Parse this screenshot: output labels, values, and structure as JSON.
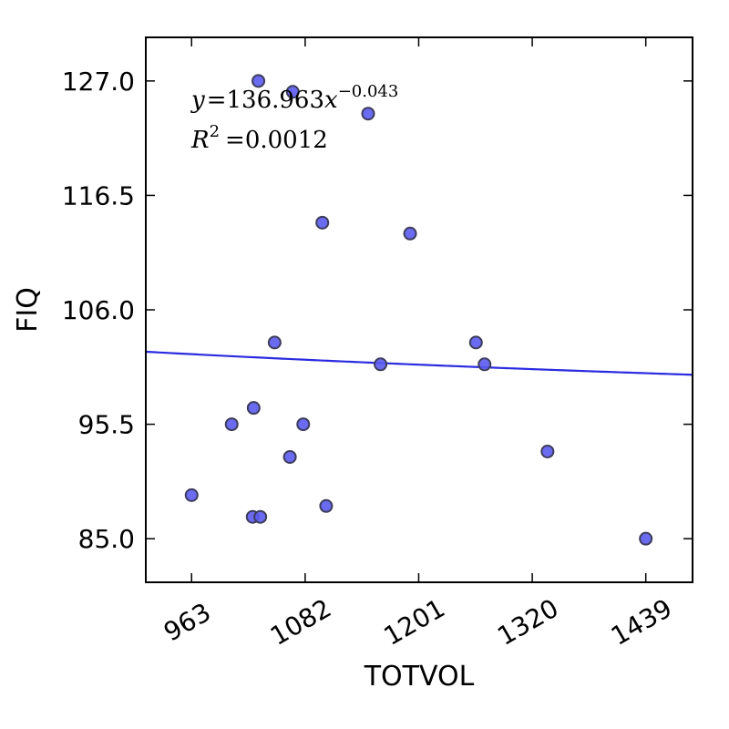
{
  "chart_data": {
    "type": "scatter",
    "xlabel": "TOTVOL",
    "ylabel": "FIQ",
    "xlim": [
      915,
      1488
    ],
    "ylim": [
      81,
      131
    ],
    "xticks": [
      963,
      1082,
      1201,
      1320,
      1439
    ],
    "xtick_labels": [
      "963",
      "1082",
      "1201",
      "1320",
      "1439"
    ],
    "yticks": [
      85.0,
      95.5,
      106.0,
      116.5,
      127.0
    ],
    "ytick_labels": [
      "85.0",
      "95.5",
      "106.0",
      "116.5",
      "127.0"
    ],
    "grid": false,
    "points": [
      {
        "x": 1033,
        "y": 127
      },
      {
        "x": 1069,
        "y": 126
      },
      {
        "x": 1148,
        "y": 124
      },
      {
        "x": 1100,
        "y": 114
      },
      {
        "x": 1192,
        "y": 113
      },
      {
        "x": 1050,
        "y": 103
      },
      {
        "x": 1261,
        "y": 103
      },
      {
        "x": 1161,
        "y": 101
      },
      {
        "x": 1270,
        "y": 101
      },
      {
        "x": 1028,
        "y": 97
      },
      {
        "x": 1005,
        "y": 95.5
      },
      {
        "x": 1080,
        "y": 95.5
      },
      {
        "x": 1066,
        "y": 92.5
      },
      {
        "x": 1336,
        "y": 93
      },
      {
        "x": 963,
        "y": 89
      },
      {
        "x": 1104,
        "y": 88
      },
      {
        "x": 1027,
        "y": 87
      },
      {
        "x": 1035,
        "y": 87
      },
      {
        "x": 1439,
        "y": 85
      }
    ],
    "fit": {
      "type": "power",
      "a": 136.963,
      "b": -0.043
    },
    "equation_text": {
      "y_label": "y",
      "equals": "=",
      "coef": "136.963",
      "var": "x",
      "exponent": "−0.043"
    },
    "r2_text": {
      "label": "R",
      "sup": "2",
      "equals": "=",
      "value": "0.0012"
    },
    "colors": {
      "point_fill": "#5b5bef",
      "point_stroke": "#3c3c5c",
      "fit_line": "#2b2be0",
      "axis": "#000000"
    }
  }
}
